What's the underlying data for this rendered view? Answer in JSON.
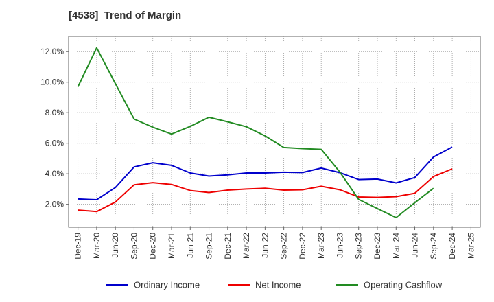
{
  "chart_data": {
    "type": "line",
    "title": "[4538]  Trend of Margin",
    "categories": [
      "Dec-19",
      "Mar-20",
      "Jun-20",
      "Sep-20",
      "Dec-20",
      "Mar-21",
      "Jun-21",
      "Sep-21",
      "Dec-21",
      "Mar-22",
      "Jun-22",
      "Sep-22",
      "Dec-22",
      "Mar-23",
      "Jun-23",
      "Sep-23",
      "Dec-23",
      "Mar-24",
      "Jun-24",
      "Sep-24",
      "Dec-24",
      "Mar-25"
    ],
    "yticks": [
      "2.0%",
      "4.0%",
      "6.0%",
      "8.0%",
      "10.0%",
      "12.0%"
    ],
    "ylim": [
      0.5,
      13
    ],
    "grid": true,
    "legend_position": "bottom",
    "series": [
      {
        "name": "Ordinary Income",
        "color": "#0000cc",
        "values": [
          2.35,
          2.3,
          3.1,
          4.45,
          4.72,
          4.55,
          4.05,
          3.85,
          3.93,
          4.05,
          4.05,
          4.1,
          4.08,
          4.37,
          4.07,
          3.62,
          3.65,
          3.4,
          3.75,
          5.1,
          5.75,
          null
        ]
      },
      {
        "name": "Net Income",
        "color": "#ee0000",
        "values": [
          1.62,
          1.52,
          2.15,
          3.28,
          3.42,
          3.3,
          2.9,
          2.77,
          2.93,
          3.0,
          3.05,
          2.93,
          2.95,
          3.18,
          2.95,
          2.48,
          2.45,
          2.5,
          2.72,
          3.82,
          4.32,
          null
        ]
      },
      {
        "name": "Operating Cashflow",
        "color": "#228b22",
        "values": [
          9.7,
          12.25,
          9.9,
          7.58,
          7.05,
          6.6,
          7.1,
          7.7,
          7.4,
          7.08,
          6.48,
          5.72,
          5.65,
          5.6,
          4.1,
          2.32,
          1.72,
          1.13,
          2.1,
          3.05,
          null,
          null
        ]
      }
    ]
  }
}
